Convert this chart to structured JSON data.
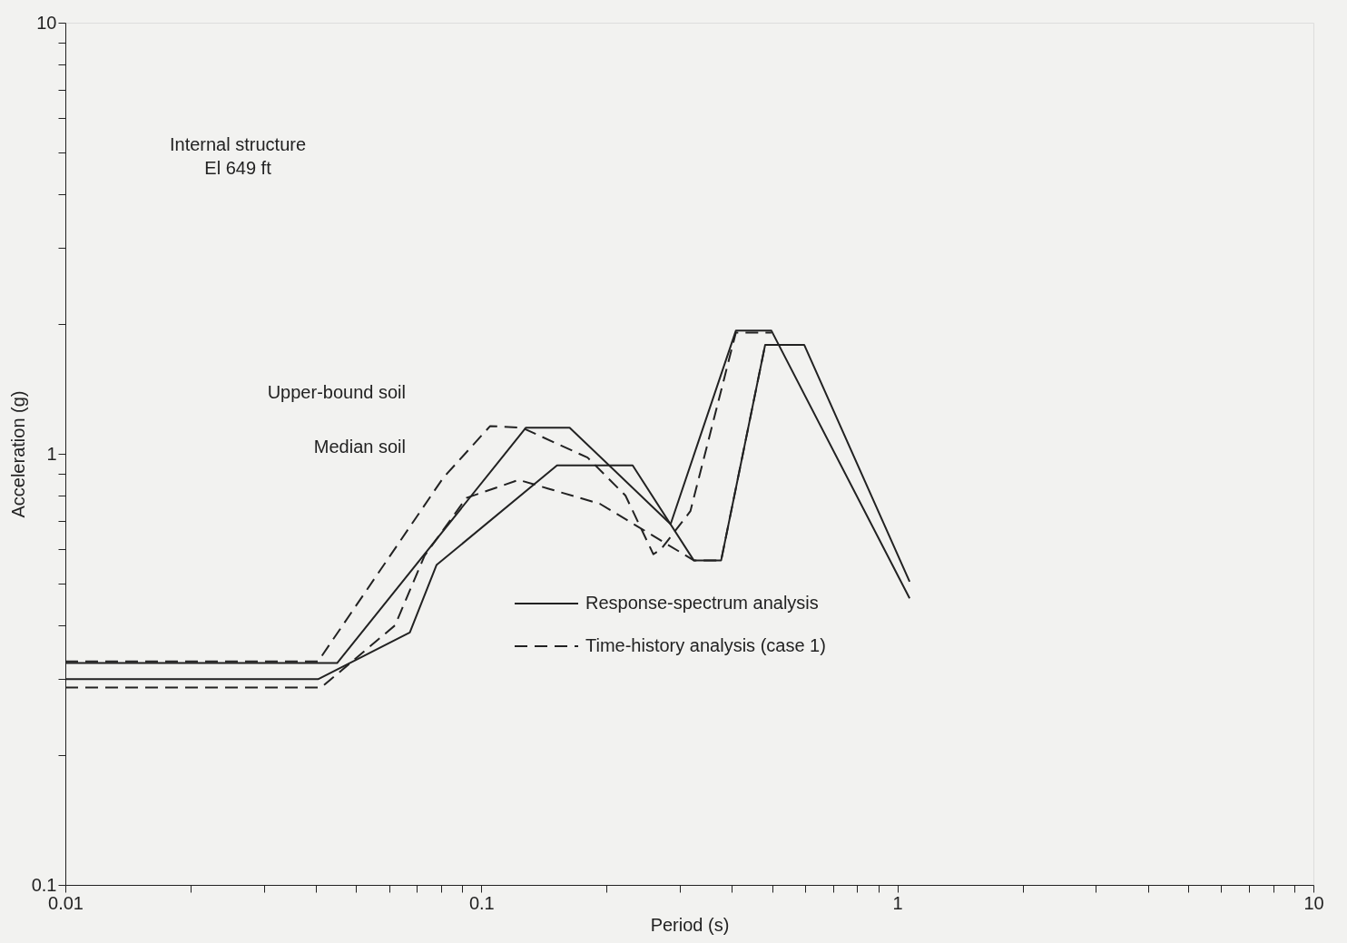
{
  "chart_data": {
    "type": "line",
    "xlabel": "Period (s)",
    "ylabel": "Acceleration (g)",
    "log": "xy",
    "grid": false,
    "legend": "bottom",
    "marker": "none",
    "xlim": [
      0.01,
      10
    ],
    "ylim": [
      0.1,
      10
    ],
    "xticks": [
      0.01,
      {
        "value": 0.02,
        "label": null
      },
      {
        "value": 0.03,
        "label": null
      },
      {
        "value": 0.04,
        "label": null
      },
      {
        "value": 0.05,
        "label": null
      },
      {
        "value": 0.06,
        "label": null
      },
      {
        "value": 0.07,
        "label": null
      },
      {
        "value": 0.08,
        "label": null
      },
      {
        "value": 0.09,
        "label": null
      },
      0.1,
      {
        "value": 0.2,
        "label": null
      },
      {
        "value": 0.3,
        "label": null
      },
      {
        "value": 0.4,
        "label": null
      },
      {
        "value": 0.5,
        "label": null
      },
      {
        "value": 0.6,
        "label": null
      },
      {
        "value": 0.7,
        "label": null
      },
      {
        "value": 0.8,
        "label": null
      },
      {
        "value": 0.9,
        "label": null
      },
      1,
      {
        "value": 2,
        "label": null
      },
      {
        "value": 3,
        "label": null
      },
      {
        "value": 4,
        "label": null
      },
      {
        "value": 5,
        "label": null
      },
      {
        "value": 6,
        "label": null
      },
      {
        "value": 7,
        "label": null
      },
      {
        "value": 8,
        "label": null
      },
      {
        "value": 9,
        "label": null
      },
      10
    ],
    "yticks": [
      0.1,
      {
        "value": 0.2,
        "label": null
      },
      {
        "value": 0.3,
        "label": null
      },
      {
        "value": 0.4,
        "label": null
      },
      {
        "value": 0.5,
        "label": null
      },
      {
        "value": 0.6,
        "label": null
      },
      {
        "value": 0.7,
        "label": null
      },
      {
        "value": 0.8,
        "label": null
      },
      {
        "value": 0.9,
        "label": null
      },
      1,
      {
        "value": 2,
        "label": null
      },
      {
        "value": 3,
        "label": null
      },
      {
        "value": 4,
        "label": null
      },
      {
        "value": 5,
        "label": null
      },
      {
        "value": 6,
        "label": null
      },
      {
        "value": 7,
        "label": null
      },
      {
        "value": 8,
        "label": null
      },
      {
        "value": 9,
        "label": null
      },
      10
    ],
    "series": [
      {
        "name": "Response-spectrum analysis",
        "color": "#222222",
        "line_style": "solid",
        "x": [
          0.01,
          0.045,
          0.128,
          0.163,
          0.285,
          0.409,
          0.498,
          1.07
        ],
        "values": [
          0.327,
          0.327,
          1.15,
          1.15,
          0.687,
          1.93,
          1.93,
          0.462
        ]
      },
      {
        "color": "#222222",
        "line_style": "solid",
        "x": [
          0.01,
          0.0405,
          0.0673,
          0.078,
          0.152,
          0.231,
          0.324,
          0.377,
          0.481,
          0.597,
          1.07
        ],
        "values": [
          0.3,
          0.3,
          0.385,
          0.552,
          0.94,
          0.94,
          0.566,
          0.566,
          1.79,
          1.79,
          0.505
        ]
      },
      {
        "name": "Time-history analysis (case 1)",
        "color": "#222222",
        "line_style": "dashed",
        "x": [
          0.01,
          0.0405,
          0.081,
          0.105,
          0.125,
          0.18,
          0.222,
          0.259,
          0.27,
          0.318,
          0.409,
          0.498
        ],
        "values": [
          0.33,
          0.33,
          0.88,
          1.16,
          1.15,
          0.98,
          0.8,
          0.585,
          0.6,
          0.736,
          1.91,
          1.91
        ]
      },
      {
        "color": "#222222",
        "line_style": "dashed",
        "x": [
          0.01,
          0.0412,
          0.062,
          0.073,
          0.092,
          0.123,
          0.145,
          0.193,
          0.239,
          0.324,
          0.377,
          0.481,
          0.597
        ],
        "values": [
          0.287,
          0.287,
          0.4,
          0.58,
          0.79,
          0.87,
          0.83,
          0.765,
          0.676,
          0.566,
          0.566,
          1.79,
          1.79
        ]
      }
    ],
    "annotations": [
      "Internal structure\nEl 649 ft",
      "Upper-bound soil",
      "Median soil"
    ]
  }
}
